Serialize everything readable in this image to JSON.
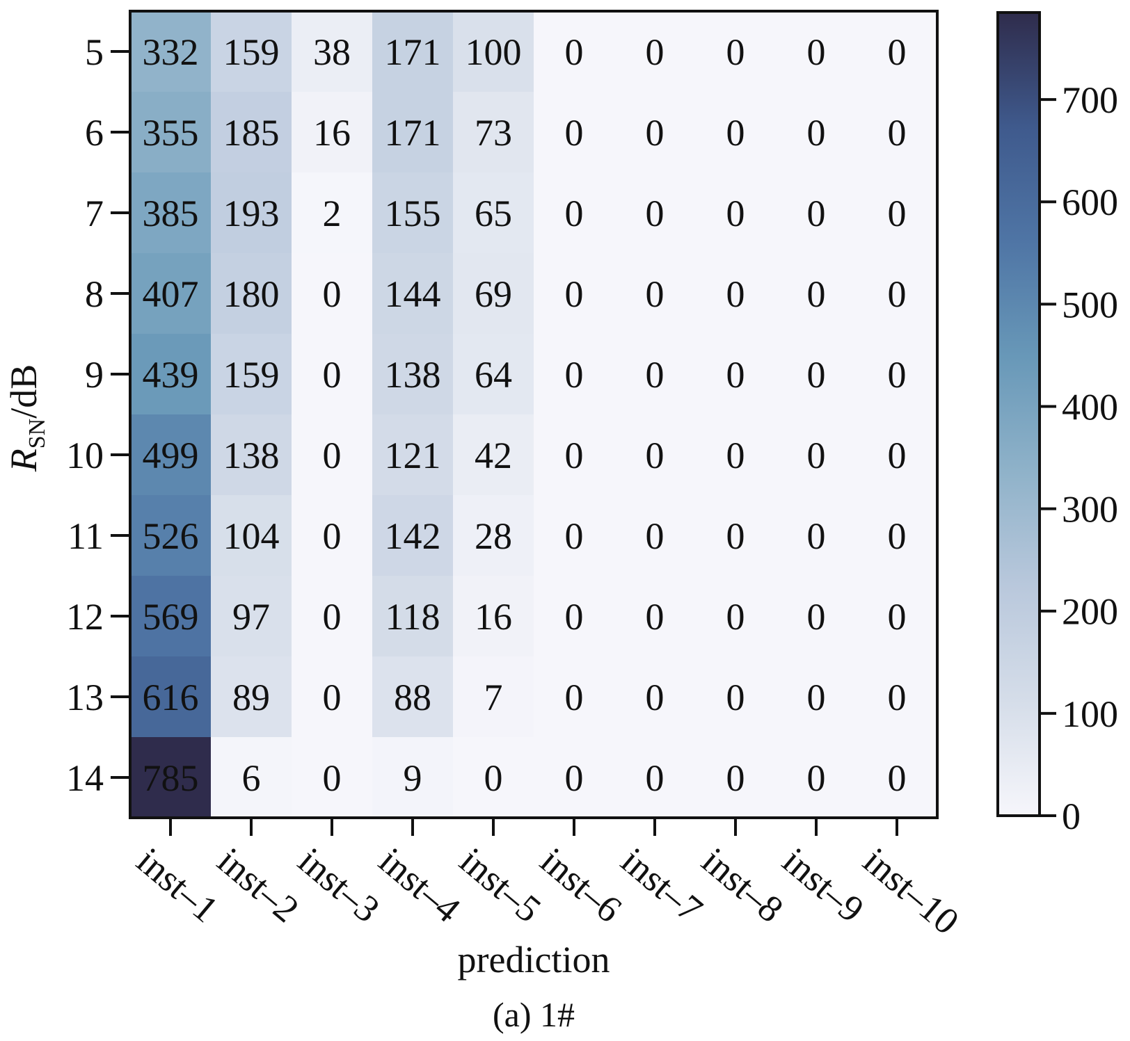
{
  "chart_data": {
    "type": "heatmap",
    "caption": "(a) 1#",
    "xlabel": "prediction",
    "ylabel_main": "R",
    "ylabel_sub": "SN",
    "ylabel_unit": "/dB",
    "x_categories": [
      "inst–1",
      "inst–2",
      "inst–3",
      "inst–4",
      "inst–5",
      "inst–6",
      "inst–7",
      "inst–8",
      "inst–9",
      "inst–10"
    ],
    "y_categories": [
      "5",
      "6",
      "7",
      "8",
      "9",
      "10",
      "11",
      "12",
      "13",
      "14"
    ],
    "values": [
      [
        332,
        159,
        38,
        171,
        100,
        0,
        0,
        0,
        0,
        0
      ],
      [
        355,
        185,
        16,
        171,
        73,
        0,
        0,
        0,
        0,
        0
      ],
      [
        385,
        193,
        2,
        155,
        65,
        0,
        0,
        0,
        0,
        0
      ],
      [
        407,
        180,
        0,
        144,
        69,
        0,
        0,
        0,
        0,
        0
      ],
      [
        439,
        159,
        0,
        138,
        64,
        0,
        0,
        0,
        0,
        0
      ],
      [
        499,
        138,
        0,
        121,
        42,
        0,
        0,
        0,
        0,
        0
      ],
      [
        526,
        104,
        0,
        142,
        28,
        0,
        0,
        0,
        0,
        0
      ],
      [
        569,
        97,
        0,
        118,
        16,
        0,
        0,
        0,
        0,
        0
      ],
      [
        616,
        89,
        0,
        88,
        7,
        0,
        0,
        0,
        0,
        0
      ],
      [
        785,
        6,
        0,
        9,
        0,
        0,
        0,
        0,
        0,
        0
      ]
    ],
    "colorbar": {
      "range": [
        0,
        785
      ],
      "ticks": [
        "0",
        "100",
        "200",
        "300",
        "400",
        "500",
        "600",
        "700"
      ],
      "colors": [
        "#f6f6fb",
        "#d5dde9",
        "#b9c8dc",
        "#8fb2c9",
        "#6898b8",
        "#4f75a5",
        "#3f5a8d",
        "#2f2c4c"
      ]
    },
    "grid": false,
    "legend": "colorbar-right"
  }
}
